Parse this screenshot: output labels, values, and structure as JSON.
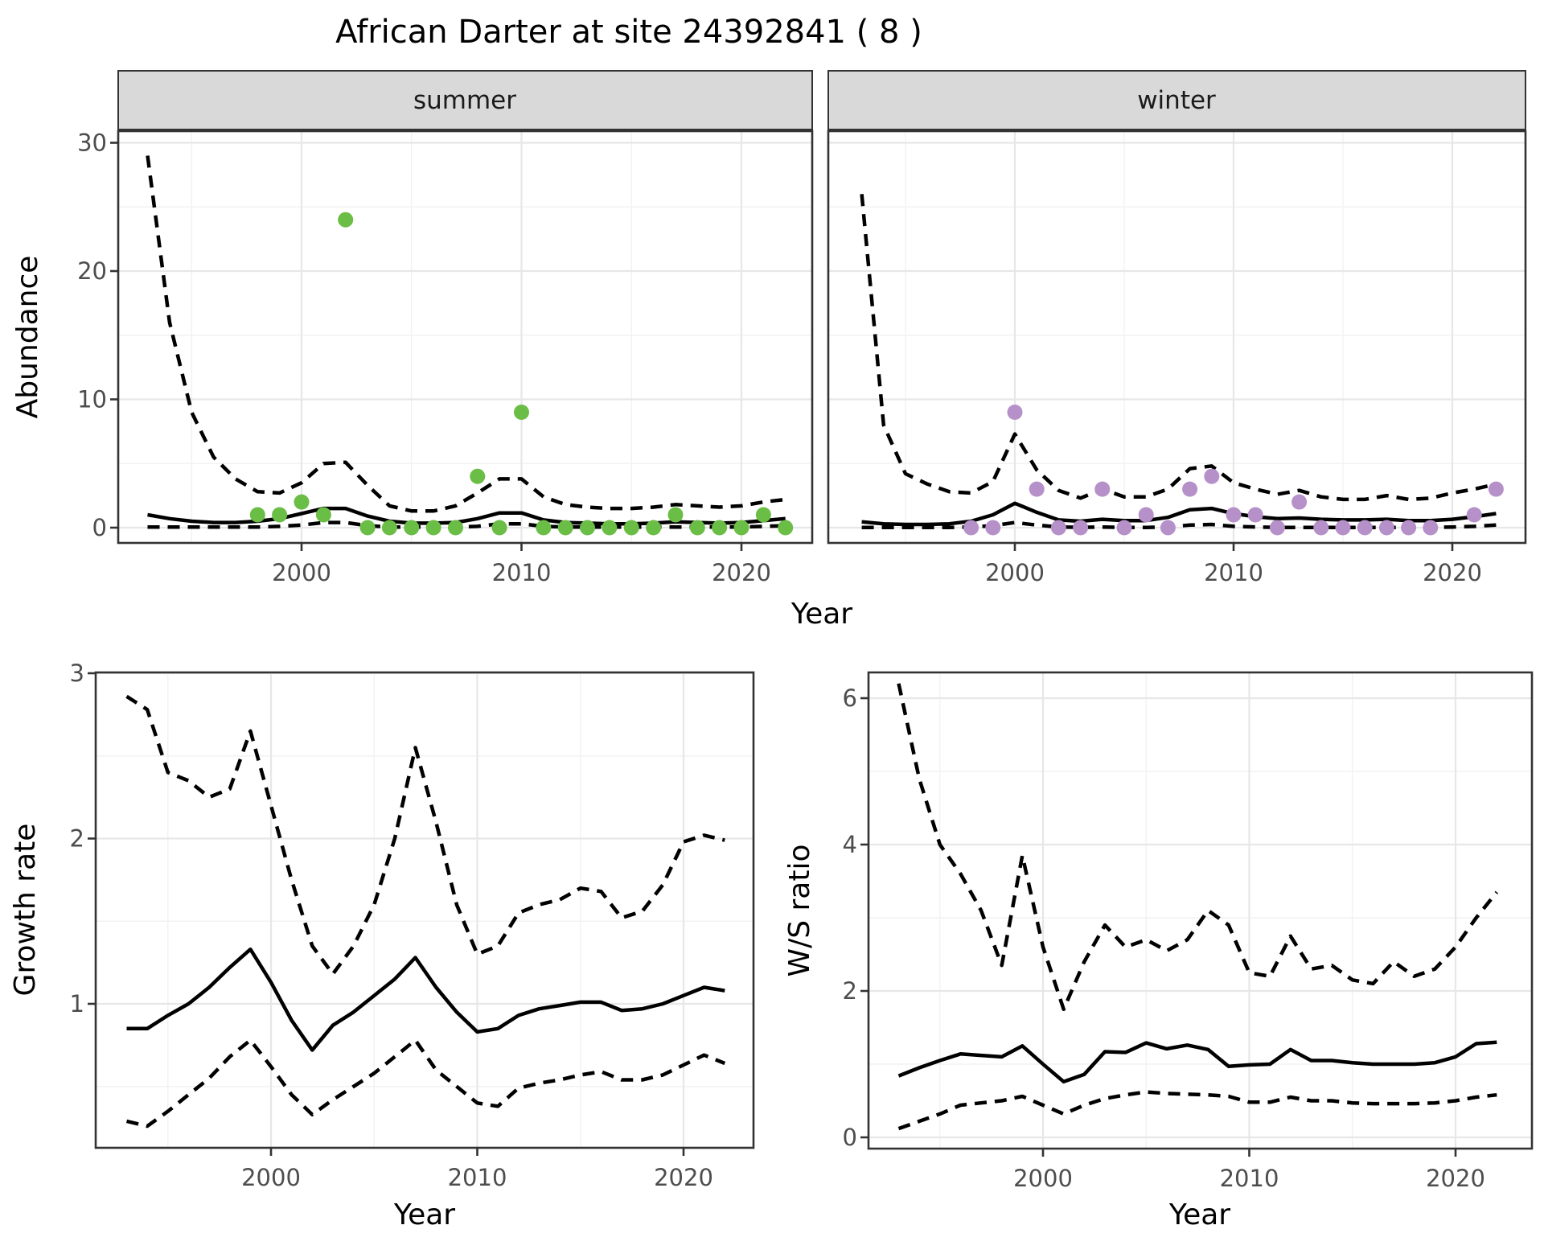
{
  "title": "African Darter at site 24392841 ( 8 )",
  "colors": {
    "summer_point": "#6abd45",
    "winter_point": "#b690c8",
    "fit_line": "#000000",
    "ci_line": "#000000",
    "strip_bg": "#d9d9d9",
    "panel_border": "#333333",
    "grid_major": "#e7e7e7",
    "grid_minor": "#f2f2f2",
    "tick_text": "#4d4d4d"
  },
  "chart_data": [
    {
      "id": "abundance-summer",
      "type": "scatter",
      "facet_label": "summer",
      "xlabel": "Year",
      "ylabel": "Abundance",
      "x_ticks": [
        2000,
        2010,
        2020
      ],
      "x_minor": [
        1995,
        2005,
        2015
      ],
      "y_ticks": [
        0,
        10,
        20,
        30
      ],
      "y_minor": [
        5,
        15,
        25
      ],
      "xlim": [
        1991.6,
        2023.2
      ],
      "ylim": [
        -1.2,
        31.1
      ],
      "points": {
        "x": [
          1998,
          1999,
          2000,
          2001,
          2002,
          2003,
          2004,
          2005,
          2006,
          2007,
          2008,
          2009,
          2010,
          2011,
          2012,
          2013,
          2014,
          2015,
          2016,
          2017,
          2018,
          2019,
          2020,
          2021,
          2022
        ],
        "y": [
          1,
          1,
          2,
          1,
          24,
          0,
          0,
          0,
          0,
          0,
          4,
          0,
          9,
          0,
          0,
          0,
          0,
          0,
          0,
          1,
          0,
          0,
          0,
          1,
          0
        ]
      },
      "fit": {
        "x_start": 1993,
        "y": [
          1.0,
          0.7,
          0.5,
          0.4,
          0.4,
          0.5,
          0.7,
          1.1,
          1.5,
          1.5,
          0.9,
          0.5,
          0.35,
          0.35,
          0.4,
          0.7,
          1.15,
          1.15,
          0.6,
          0.4,
          0.35,
          0.3,
          0.3,
          0.35,
          0.45,
          0.4,
          0.35,
          0.4,
          0.55,
          0.7
        ]
      },
      "upper": {
        "x_start": 1993,
        "y": [
          29,
          16,
          9,
          5.5,
          3.8,
          2.8,
          2.7,
          3.5,
          5.0,
          5.1,
          3.3,
          1.7,
          1.3,
          1.3,
          1.7,
          2.7,
          3.8,
          3.8,
          2.4,
          1.8,
          1.6,
          1.5,
          1.5,
          1.6,
          1.8,
          1.7,
          1.6,
          1.7,
          2.0,
          2.2
        ]
      },
      "lower": {
        "x_start": 1993,
        "y": [
          0.05,
          0.05,
          0.05,
          0.05,
          0.05,
          0.05,
          0.1,
          0.2,
          0.4,
          0.4,
          0.15,
          0.05,
          0.05,
          0.05,
          0.05,
          0.1,
          0.3,
          0.3,
          0.1,
          0.05,
          0.05,
          0.05,
          0.05,
          0.05,
          0.05,
          0.05,
          0.05,
          0.05,
          0.1,
          0.15
        ]
      }
    },
    {
      "id": "abundance-winter",
      "type": "scatter",
      "facet_label": "winter",
      "xlabel": "Year",
      "ylabel": "Abundance",
      "x_ticks": [
        2000,
        2010,
        2020
      ],
      "x_minor": [
        1995,
        2005,
        2015
      ],
      "y_ticks": [
        0,
        10,
        20,
        30
      ],
      "y_minor": [
        5,
        15,
        25
      ],
      "xlim": [
        1991.5,
        2023.3
      ],
      "ylim": [
        -1.2,
        31.1
      ],
      "points": {
        "x": [
          1998,
          1999,
          2000,
          2001,
          2002,
          2003,
          2004,
          2005,
          2006,
          2007,
          2008,
          2009,
          2010,
          2011,
          2012,
          2013,
          2014,
          2015,
          2016,
          2017,
          2018,
          2019,
          2021,
          2022
        ],
        "y": [
          0,
          0,
          9,
          3,
          0,
          0,
          3,
          0,
          1,
          0,
          3,
          4,
          1,
          1,
          0,
          2,
          0,
          0,
          0,
          0,
          0,
          0,
          1,
          3
        ]
      },
      "fit": {
        "x_start": 1993,
        "y": [
          0.45,
          0.3,
          0.25,
          0.25,
          0.3,
          0.5,
          1.0,
          1.9,
          1.2,
          0.6,
          0.5,
          0.65,
          0.55,
          0.55,
          0.8,
          1.4,
          1.5,
          1.1,
          0.85,
          0.7,
          0.75,
          0.65,
          0.6,
          0.6,
          0.65,
          0.55,
          0.55,
          0.65,
          0.85,
          1.1
        ]
      },
      "upper": {
        "x_start": 1993,
        "y": [
          26,
          8,
          4.2,
          3.4,
          2.8,
          2.7,
          3.6,
          7.3,
          4.5,
          2.9,
          2.3,
          3.0,
          2.4,
          2.4,
          3.0,
          4.6,
          4.8,
          3.5,
          3.0,
          2.6,
          2.9,
          2.4,
          2.2,
          2.2,
          2.5,
          2.2,
          2.3,
          2.7,
          3.0,
          3.4
        ]
      },
      "lower": {
        "x_start": 1993,
        "y": [
          0.02,
          0.02,
          0.02,
          0.02,
          0.02,
          0.05,
          0.15,
          0.4,
          0.2,
          0.05,
          0.02,
          0.05,
          0.02,
          0.02,
          0.05,
          0.2,
          0.25,
          0.1,
          0.05,
          0.02,
          0.02,
          0.02,
          0.02,
          0.02,
          0.02,
          0.02,
          0.02,
          0.05,
          0.1,
          0.2
        ]
      }
    },
    {
      "id": "growth-rate",
      "type": "line",
      "facet_label": "",
      "xlabel": "Year",
      "ylabel": "Growth rate",
      "x_ticks": [
        2000,
        2010,
        2020
      ],
      "x_minor": [
        1995,
        2005,
        2015
      ],
      "y_ticks": [
        1,
        2,
        3
      ],
      "y_minor": [
        0.5,
        1.5,
        2.5
      ],
      "xlim": [
        1991.5,
        2023.4
      ],
      "ylim": [
        0.13,
        3.0
      ],
      "fit": {
        "x_start": 1993,
        "y": [
          0.85,
          0.85,
          0.93,
          1.0,
          1.1,
          1.22,
          1.33,
          1.13,
          0.9,
          0.72,
          0.87,
          0.95,
          1.05,
          1.15,
          1.28,
          1.1,
          0.95,
          0.83,
          0.85,
          0.93,
          0.97,
          0.99,
          1.01,
          1.01,
          0.96,
          0.97,
          1.0,
          1.05,
          1.1,
          1.08
        ]
      },
      "upper": {
        "x_start": 1993,
        "y": [
          2.86,
          2.78,
          2.4,
          2.35,
          2.25,
          2.3,
          2.65,
          2.2,
          1.75,
          1.35,
          1.18,
          1.35,
          1.6,
          2.0,
          2.55,
          2.1,
          1.6,
          1.3,
          1.35,
          1.55,
          1.6,
          1.63,
          1.7,
          1.68,
          1.52,
          1.56,
          1.72,
          1.98,
          2.02,
          1.99
        ]
      },
      "lower": {
        "x_start": 1993,
        "y": [
          0.29,
          0.26,
          0.35,
          0.45,
          0.55,
          0.68,
          0.78,
          0.62,
          0.45,
          0.33,
          0.42,
          0.5,
          0.58,
          0.68,
          0.78,
          0.6,
          0.5,
          0.4,
          0.38,
          0.49,
          0.52,
          0.54,
          0.57,
          0.59,
          0.54,
          0.54,
          0.57,
          0.63,
          0.69,
          0.64
        ]
      }
    },
    {
      "id": "ws-ratio",
      "type": "line",
      "facet_label": "",
      "xlabel": "Year",
      "ylabel": "W/S ratio",
      "x_ticks": [
        2000,
        2010,
        2020
      ],
      "x_minor": [
        1995,
        2005,
        2015
      ],
      "y_ticks": [
        0,
        2,
        4,
        6
      ],
      "y_minor": [
        1,
        3,
        5
      ],
      "xlim": [
        1991.5,
        2023.7
      ],
      "ylim": [
        -0.15,
        6.35
      ],
      "fit": {
        "x_start": 1993,
        "y": [
          0.84,
          0.95,
          1.05,
          1.14,
          1.12,
          1.1,
          1.25,
          1.0,
          0.76,
          0.86,
          1.17,
          1.16,
          1.29,
          1.21,
          1.26,
          1.2,
          0.97,
          0.99,
          1.0,
          1.2,
          1.05,
          1.05,
          1.02,
          1.0,
          1.0,
          1.0,
          1.02,
          1.1,
          1.28,
          1.3
        ]
      },
      "upper": {
        "x_start": 1993,
        "y": [
          6.2,
          4.9,
          4.0,
          3.6,
          3.1,
          2.35,
          3.85,
          2.6,
          1.75,
          2.4,
          2.9,
          2.6,
          2.7,
          2.55,
          2.7,
          3.1,
          2.9,
          2.25,
          2.2,
          2.75,
          2.3,
          2.35,
          2.15,
          2.1,
          2.4,
          2.2,
          2.3,
          2.6,
          3.0,
          3.35
        ]
      },
      "lower": {
        "x_start": 1993,
        "y": [
          0.12,
          0.22,
          0.32,
          0.44,
          0.47,
          0.5,
          0.56,
          0.44,
          0.32,
          0.44,
          0.53,
          0.58,
          0.62,
          0.6,
          0.59,
          0.58,
          0.56,
          0.48,
          0.48,
          0.55,
          0.5,
          0.5,
          0.47,
          0.46,
          0.46,
          0.46,
          0.47,
          0.5,
          0.55,
          0.58
        ]
      }
    }
  ]
}
